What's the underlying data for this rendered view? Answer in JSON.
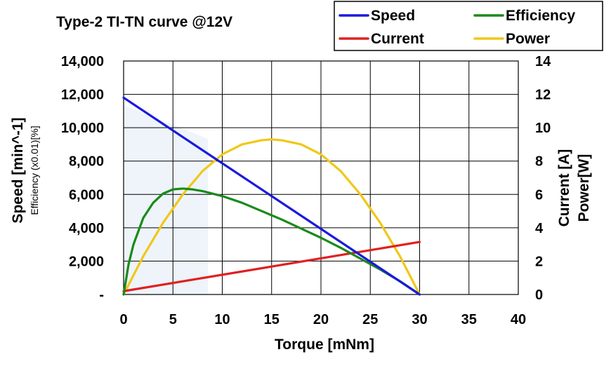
{
  "chart_data": {
    "type": "line",
    "title": "Type-2 TI-TN curve @12V",
    "xlabel": "Torque [mNm]",
    "ylabel_left": "Speed [min^-1]",
    "ylabel_left_sub": "Efficiency (x0.01)[%]",
    "ylabel_right_1": "Current [A]",
    "ylabel_right_2": "Power[W]",
    "xlim": [
      0,
      40
    ],
    "ylim_left": [
      0,
      14000
    ],
    "ylim_right": [
      0,
      14
    ],
    "x_ticks": [
      "0",
      "5",
      "10",
      "15",
      "20",
      "25",
      "30",
      "35",
      "40"
    ],
    "y_left_ticks": [
      "-",
      "2,000",
      "4,000",
      "6,000",
      "8,000",
      "10,000",
      "12,000",
      "14,000"
    ],
    "y_right_ticks": [
      "0",
      "2",
      "4",
      "6",
      "8",
      "10",
      "12",
      "14"
    ],
    "grid": true,
    "legend_position": "top-right",
    "series": [
      {
        "name": "Speed",
        "axis": "left",
        "color": "#1a1adc",
        "x": [
          0,
          30
        ],
        "y": [
          11800,
          0
        ]
      },
      {
        "name": "Efficiency",
        "axis": "left",
        "color": "#1a8a1a",
        "x": [
          0,
          0.5,
          1,
          2,
          3,
          4,
          5,
          6,
          7,
          8,
          10,
          12,
          14,
          16,
          18,
          20,
          22,
          24,
          26,
          28,
          30
        ],
        "y": [
          0,
          1800,
          3000,
          4600,
          5500,
          6050,
          6300,
          6350,
          6300,
          6200,
          5900,
          5500,
          5000,
          4500,
          3950,
          3400,
          2800,
          2150,
          1500,
          800,
          0
        ]
      },
      {
        "name": "Current",
        "axis": "right",
        "color": "#e02020",
        "x": [
          0,
          30
        ],
        "y": [
          0.2,
          3.15
        ]
      },
      {
        "name": "Power",
        "axis": "right",
        "color": "#f0c818",
        "x": [
          0,
          2,
          4,
          6,
          8,
          10,
          12,
          14,
          15,
          16,
          18,
          20,
          22,
          24,
          26,
          28,
          30
        ],
        "y": [
          0,
          2.3,
          4.3,
          6.0,
          7.4,
          8.4,
          9.0,
          9.25,
          9.3,
          9.25,
          9.0,
          8.4,
          7.4,
          6.0,
          4.3,
          2.3,
          0
        ]
      }
    ]
  }
}
